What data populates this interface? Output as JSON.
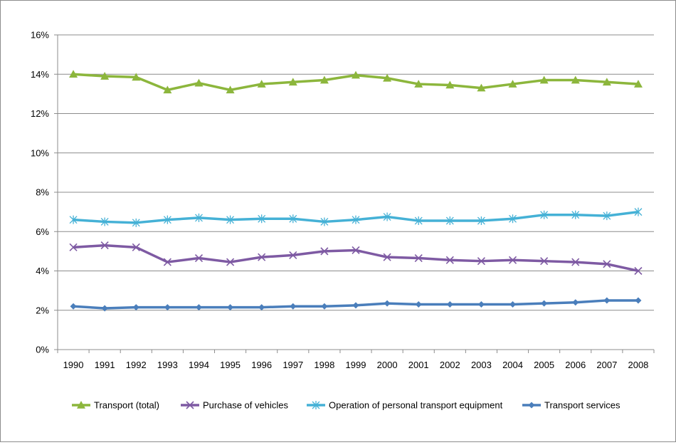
{
  "chart_data": {
    "type": "line",
    "title": "",
    "xlabel": "",
    "ylabel": "",
    "categories": [
      "1990",
      "1991",
      "1992",
      "1993",
      "1994",
      "1995",
      "1996",
      "1997",
      "1998",
      "1999",
      "2000",
      "2001",
      "2002",
      "2003",
      "2004",
      "2005",
      "2006",
      "2007",
      "2008"
    ],
    "ylim": [
      0,
      16
    ],
    "yticks": [
      "0%",
      "2%",
      "4%",
      "6%",
      "8%",
      "10%",
      "12%",
      "14%",
      "16%"
    ],
    "grid": true,
    "legend_position": "bottom",
    "series": [
      {
        "name": "Transport (total)",
        "color": "#8cb63c",
        "marker": "triangle",
        "values": [
          14.0,
          13.9,
          13.85,
          13.2,
          13.55,
          13.2,
          13.5,
          13.6,
          13.7,
          13.95,
          13.8,
          13.5,
          13.45,
          13.3,
          13.5,
          13.7,
          13.7,
          13.6,
          13.5
        ]
      },
      {
        "name": "Purchase of vehicles",
        "color": "#7e5aa3",
        "marker": "x",
        "values": [
          5.2,
          5.3,
          5.2,
          4.45,
          4.65,
          4.45,
          4.7,
          4.8,
          5.0,
          5.05,
          4.7,
          4.65,
          4.55,
          4.5,
          4.55,
          4.5,
          4.45,
          4.35,
          4.0
        ]
      },
      {
        "name": "Operation of personal transport equipment",
        "color": "#45b1d6",
        "marker": "asterisk",
        "values": [
          6.6,
          6.5,
          6.45,
          6.6,
          6.7,
          6.6,
          6.65,
          6.65,
          6.5,
          6.6,
          6.75,
          6.55,
          6.55,
          6.55,
          6.65,
          6.85,
          6.85,
          6.8,
          7.0
        ]
      },
      {
        "name": "Transport services",
        "color": "#4a7ebb",
        "marker": "diamond",
        "values": [
          2.2,
          2.1,
          2.15,
          2.15,
          2.15,
          2.15,
          2.15,
          2.2,
          2.2,
          2.25,
          2.35,
          2.3,
          2.3,
          2.3,
          2.3,
          2.35,
          2.4,
          2.5,
          2.5
        ]
      }
    ]
  }
}
